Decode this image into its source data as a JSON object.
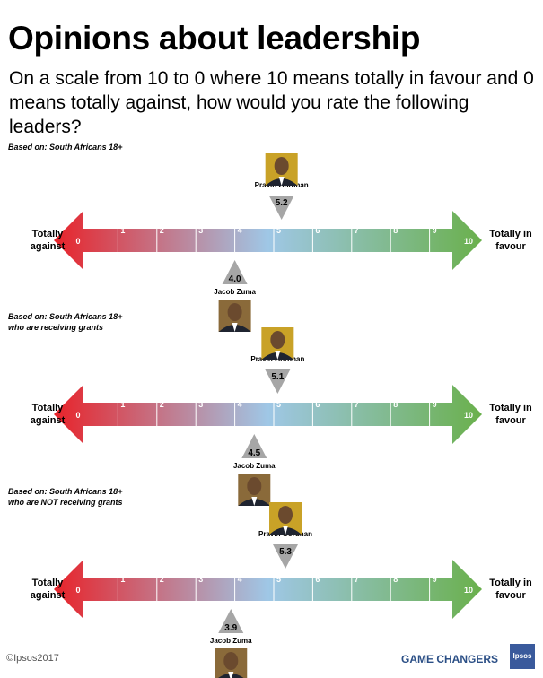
{
  "title": "Opinions about leadership",
  "question": "On a scale from 10 to 0 where 10 means totally in favour and 0 means totally against, how would you rate the following leaders?",
  "colors": {
    "scale_low": "#e8232a",
    "scale_mid": "#9fc7e6",
    "scale_high": "#6ab04c",
    "marker": "#a6a6a6",
    "based_1": "#4a90c2",
    "based_2": "#9aa820",
    "based_3": "#e07b20"
  },
  "scale_labels": {
    "left": [
      "Totally",
      "against"
    ],
    "right": [
      "Totally in",
      "favour"
    ]
  },
  "icons": {
    "person_photo": "portrait-photo-icon"
  },
  "chart_data": [
    {
      "type": "scale",
      "based_on": [
        "Based on: South Africans 18+"
      ],
      "ticks": [
        "0",
        "1",
        "2",
        "3",
        "4",
        "5",
        "6",
        "7",
        "8",
        "9",
        "10"
      ],
      "xlim": [
        0,
        10
      ],
      "markers": [
        {
          "name": "Pravin Gordhan",
          "value": 5.2,
          "label": "5.2",
          "position": "above"
        },
        {
          "name": "Jacob Zuma",
          "value": 4.0,
          "label": "4.0",
          "position": "below"
        }
      ]
    },
    {
      "type": "scale",
      "based_on": [
        "Based on: South Africans 18+",
        "who are receiving grants"
      ],
      "ticks": [
        "0",
        "1",
        "2",
        "3",
        "4",
        "5",
        "6",
        "7",
        "8",
        "9",
        "10"
      ],
      "xlim": [
        0,
        10
      ],
      "markers": [
        {
          "name": "Pravin Gordhan",
          "value": 5.1,
          "label": "5.1",
          "position": "above"
        },
        {
          "name": "Jacob Zuma",
          "value": 4.5,
          "label": "4.5",
          "position": "below"
        }
      ]
    },
    {
      "type": "scale",
      "based_on": [
        "Based on: South Africans 18+",
        "who are NOT receiving grants"
      ],
      "ticks": [
        "0",
        "1",
        "2",
        "3",
        "4",
        "5",
        "6",
        "7",
        "8",
        "9",
        "10"
      ],
      "xlim": [
        0,
        10
      ],
      "markers": [
        {
          "name": "Pravin Gordhan",
          "value": 5.3,
          "label": "5.3",
          "position": "above"
        },
        {
          "name": "Jacob Zuma",
          "value": 3.9,
          "label": "3.9",
          "position": "below"
        }
      ]
    }
  ],
  "footer": {
    "copyright": "©Ipsos2017",
    "tagline": "GAME CHANGERS",
    "logo_text": "Ipsos"
  }
}
